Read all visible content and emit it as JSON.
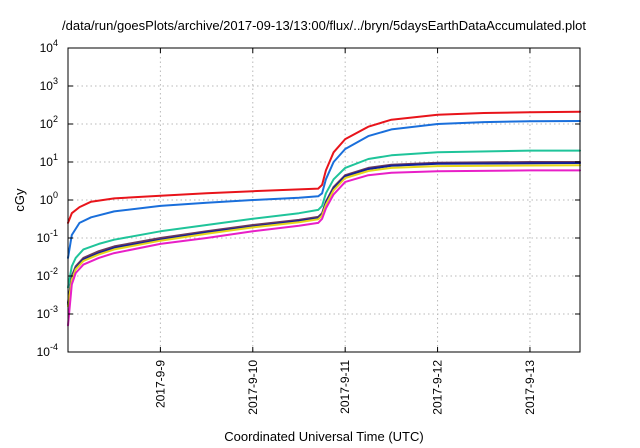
{
  "chart_data": {
    "type": "line",
    "title": "/data/run/goesPlots/archive/2017-09-13/13:00/flux/../bryn/5daysEarthDataAccumulated.plot",
    "xlabel": "Coordinated Universal Time (UTC)",
    "ylabel": "cGy",
    "x_scale": "time",
    "xlim": [
      "2017-09-08T00:00",
      "2017-09-13T13:00"
    ],
    "x_ticks": [
      "2017-9-9",
      "2017-9-10",
      "2017-9-11",
      "2017-9-12",
      "2017-9-13"
    ],
    "x_tick_values": [
      "2017-09-09T00:00",
      "2017-09-10T00:00",
      "2017-09-11T00:00",
      "2017-09-12T00:00",
      "2017-09-13T00:00"
    ],
    "y_scale": "log",
    "ylim": [
      0.0001,
      10000
    ],
    "y_ticks": [
      {
        "base": "10",
        "exp": "-4"
      },
      {
        "base": "10",
        "exp": "-3"
      },
      {
        "base": "10",
        "exp": "-2"
      },
      {
        "base": "10",
        "exp": "-1"
      },
      {
        "base": "10",
        "exp": "0"
      },
      {
        "base": "10",
        "exp": "1"
      },
      {
        "base": "10",
        "exp": "2"
      },
      {
        "base": "10",
        "exp": "3"
      },
      {
        "base": "10",
        "exp": "4"
      }
    ],
    "grid": true,
    "legend": "none",
    "series": [
      {
        "color": "#e8141b",
        "x": [
          "2017-09-08T00:00",
          "2017-09-08T01:00",
          "2017-09-08T03:00",
          "2017-09-08T06:00",
          "2017-09-08T12:00",
          "2017-09-09T00:00",
          "2017-09-09T12:00",
          "2017-09-10T00:00",
          "2017-09-10T12:00",
          "2017-09-10T17:00",
          "2017-09-10T18:00",
          "2017-09-10T19:00",
          "2017-09-10T21:00",
          "2017-09-11T00:00",
          "2017-09-11T06:00",
          "2017-09-11T12:00",
          "2017-09-12T00:00",
          "2017-09-12T12:00",
          "2017-09-13T00:00",
          "2017-09-13T13:00"
        ],
        "y": [
          0.25,
          0.45,
          0.65,
          0.9,
          1.1,
          1.3,
          1.5,
          1.7,
          1.9,
          2.0,
          2.5,
          6,
          18,
          40,
          85,
          130,
          175,
          195,
          205,
          210
        ]
      },
      {
        "color": "#1a6fdb",
        "x": [
          "2017-09-08T00:00",
          "2017-09-08T01:00",
          "2017-09-08T03:00",
          "2017-09-08T06:00",
          "2017-09-08T12:00",
          "2017-09-09T00:00",
          "2017-09-09T12:00",
          "2017-09-10T00:00",
          "2017-09-10T12:00",
          "2017-09-10T17:00",
          "2017-09-10T18:00",
          "2017-09-10T19:00",
          "2017-09-10T21:00",
          "2017-09-11T00:00",
          "2017-09-11T06:00",
          "2017-09-11T12:00",
          "2017-09-12T00:00",
          "2017-09-12T12:00",
          "2017-09-13T00:00",
          "2017-09-13T13:00"
        ],
        "y": [
          0.03,
          0.12,
          0.25,
          0.35,
          0.5,
          0.7,
          0.85,
          1.0,
          1.15,
          1.25,
          1.5,
          3.5,
          10,
          22,
          48,
          72,
          100,
          112,
          118,
          120
        ]
      },
      {
        "color": "#1fc49a",
        "x": [
          "2017-09-08T00:00",
          "2017-09-08T01:00",
          "2017-09-08T02:00",
          "2017-09-08T04:00",
          "2017-09-08T08:00",
          "2017-09-08T12:00",
          "2017-09-09T00:00",
          "2017-09-09T12:00",
          "2017-09-10T00:00",
          "2017-09-10T12:00",
          "2017-09-10T17:00",
          "2017-09-10T18:00",
          "2017-09-10T19:00",
          "2017-09-10T21:00",
          "2017-09-11T00:00",
          "2017-09-11T06:00",
          "2017-09-11T12:00",
          "2017-09-12T00:00",
          "2017-09-13T00:00",
          "2017-09-13T13:00"
        ],
        "y": [
          0.005,
          0.018,
          0.03,
          0.05,
          0.07,
          0.09,
          0.15,
          0.22,
          0.32,
          0.45,
          0.55,
          0.7,
          1.5,
          3.5,
          7,
          12,
          15,
          18,
          20,
          20
        ]
      },
      {
        "color": "#6b3a5e",
        "x": [
          "2017-09-08T00:00",
          "2017-09-08T01:00",
          "2017-09-08T02:00",
          "2017-09-08T04:00",
          "2017-09-08T08:00",
          "2017-09-08T12:00",
          "2017-09-09T00:00",
          "2017-09-09T12:00",
          "2017-09-10T00:00",
          "2017-09-10T12:00",
          "2017-09-10T17:00",
          "2017-09-10T18:00",
          "2017-09-10T19:00",
          "2017-09-10T21:00",
          "2017-09-11T00:00",
          "2017-09-11T06:00",
          "2017-09-11T12:00",
          "2017-09-12T00:00",
          "2017-09-13T00:00",
          "2017-09-13T13:00"
        ],
        "y": [
          0.002,
          0.01,
          0.018,
          0.03,
          0.045,
          0.06,
          0.1,
          0.15,
          0.22,
          0.3,
          0.36,
          0.45,
          0.9,
          2.2,
          4.5,
          7,
          8.5,
          9.5,
          10,
          10
        ]
      },
      {
        "color": "#12209a",
        "x": [
          "2017-09-08T00:00",
          "2017-09-08T01:00",
          "2017-09-08T02:00",
          "2017-09-08T04:00",
          "2017-09-08T08:00",
          "2017-09-08T12:00",
          "2017-09-09T00:00",
          "2017-09-09T12:00",
          "2017-09-10T00:00",
          "2017-09-10T12:00",
          "2017-09-10T17:00",
          "2017-09-10T18:00",
          "2017-09-10T19:00",
          "2017-09-10T21:00",
          "2017-09-11T00:00",
          "2017-09-11T06:00",
          "2017-09-11T12:00",
          "2017-09-12T00:00",
          "2017-09-13T00:00",
          "2017-09-13T13:00"
        ],
        "y": [
          0.0018,
          0.009,
          0.016,
          0.027,
          0.04,
          0.055,
          0.09,
          0.14,
          0.2,
          0.28,
          0.33,
          0.42,
          0.85,
          2.0,
          4.2,
          6.5,
          8,
          9,
          9.3,
          9.4
        ]
      },
      {
        "color": "#e6d619",
        "x": [
          "2017-09-08T00:00",
          "2017-09-08T01:00",
          "2017-09-08T02:00",
          "2017-09-08T04:00",
          "2017-09-08T08:00",
          "2017-09-08T12:00",
          "2017-09-09T00:00",
          "2017-09-09T12:00",
          "2017-09-10T00:00",
          "2017-09-10T12:00",
          "2017-09-10T17:00",
          "2017-09-10T18:00",
          "2017-09-10T19:00",
          "2017-09-10T21:00",
          "2017-09-11T00:00",
          "2017-09-11T06:00",
          "2017-09-11T12:00",
          "2017-09-12T00:00",
          "2017-09-13T00:00",
          "2017-09-13T13:00"
        ],
        "y": [
          0.0016,
          0.008,
          0.015,
          0.025,
          0.037,
          0.05,
          0.085,
          0.13,
          0.19,
          0.26,
          0.31,
          0.39,
          0.75,
          1.8,
          3.8,
          5.8,
          7,
          7.8,
          8.1,
          8.2
        ]
      },
      {
        "color": "#e81fc7",
        "x": [
          "2017-09-08T00:00",
          "2017-09-08T01:00",
          "2017-09-08T02:00",
          "2017-09-08T04:00",
          "2017-09-08T08:00",
          "2017-09-08T12:00",
          "2017-09-09T00:00",
          "2017-09-09T12:00",
          "2017-09-10T00:00",
          "2017-09-10T12:00",
          "2017-09-10T17:00",
          "2017-09-10T18:00",
          "2017-09-10T19:00",
          "2017-09-10T21:00",
          "2017-09-11T00:00",
          "2017-09-11T06:00",
          "2017-09-11T12:00",
          "2017-09-12T00:00",
          "2017-09-13T00:00",
          "2017-09-13T13:00"
        ],
        "y": [
          0.0005,
          0.006,
          0.012,
          0.02,
          0.03,
          0.04,
          0.07,
          0.1,
          0.15,
          0.21,
          0.25,
          0.32,
          0.6,
          1.4,
          3.0,
          4.5,
          5.2,
          5.7,
          6,
          6
        ]
      }
    ]
  }
}
